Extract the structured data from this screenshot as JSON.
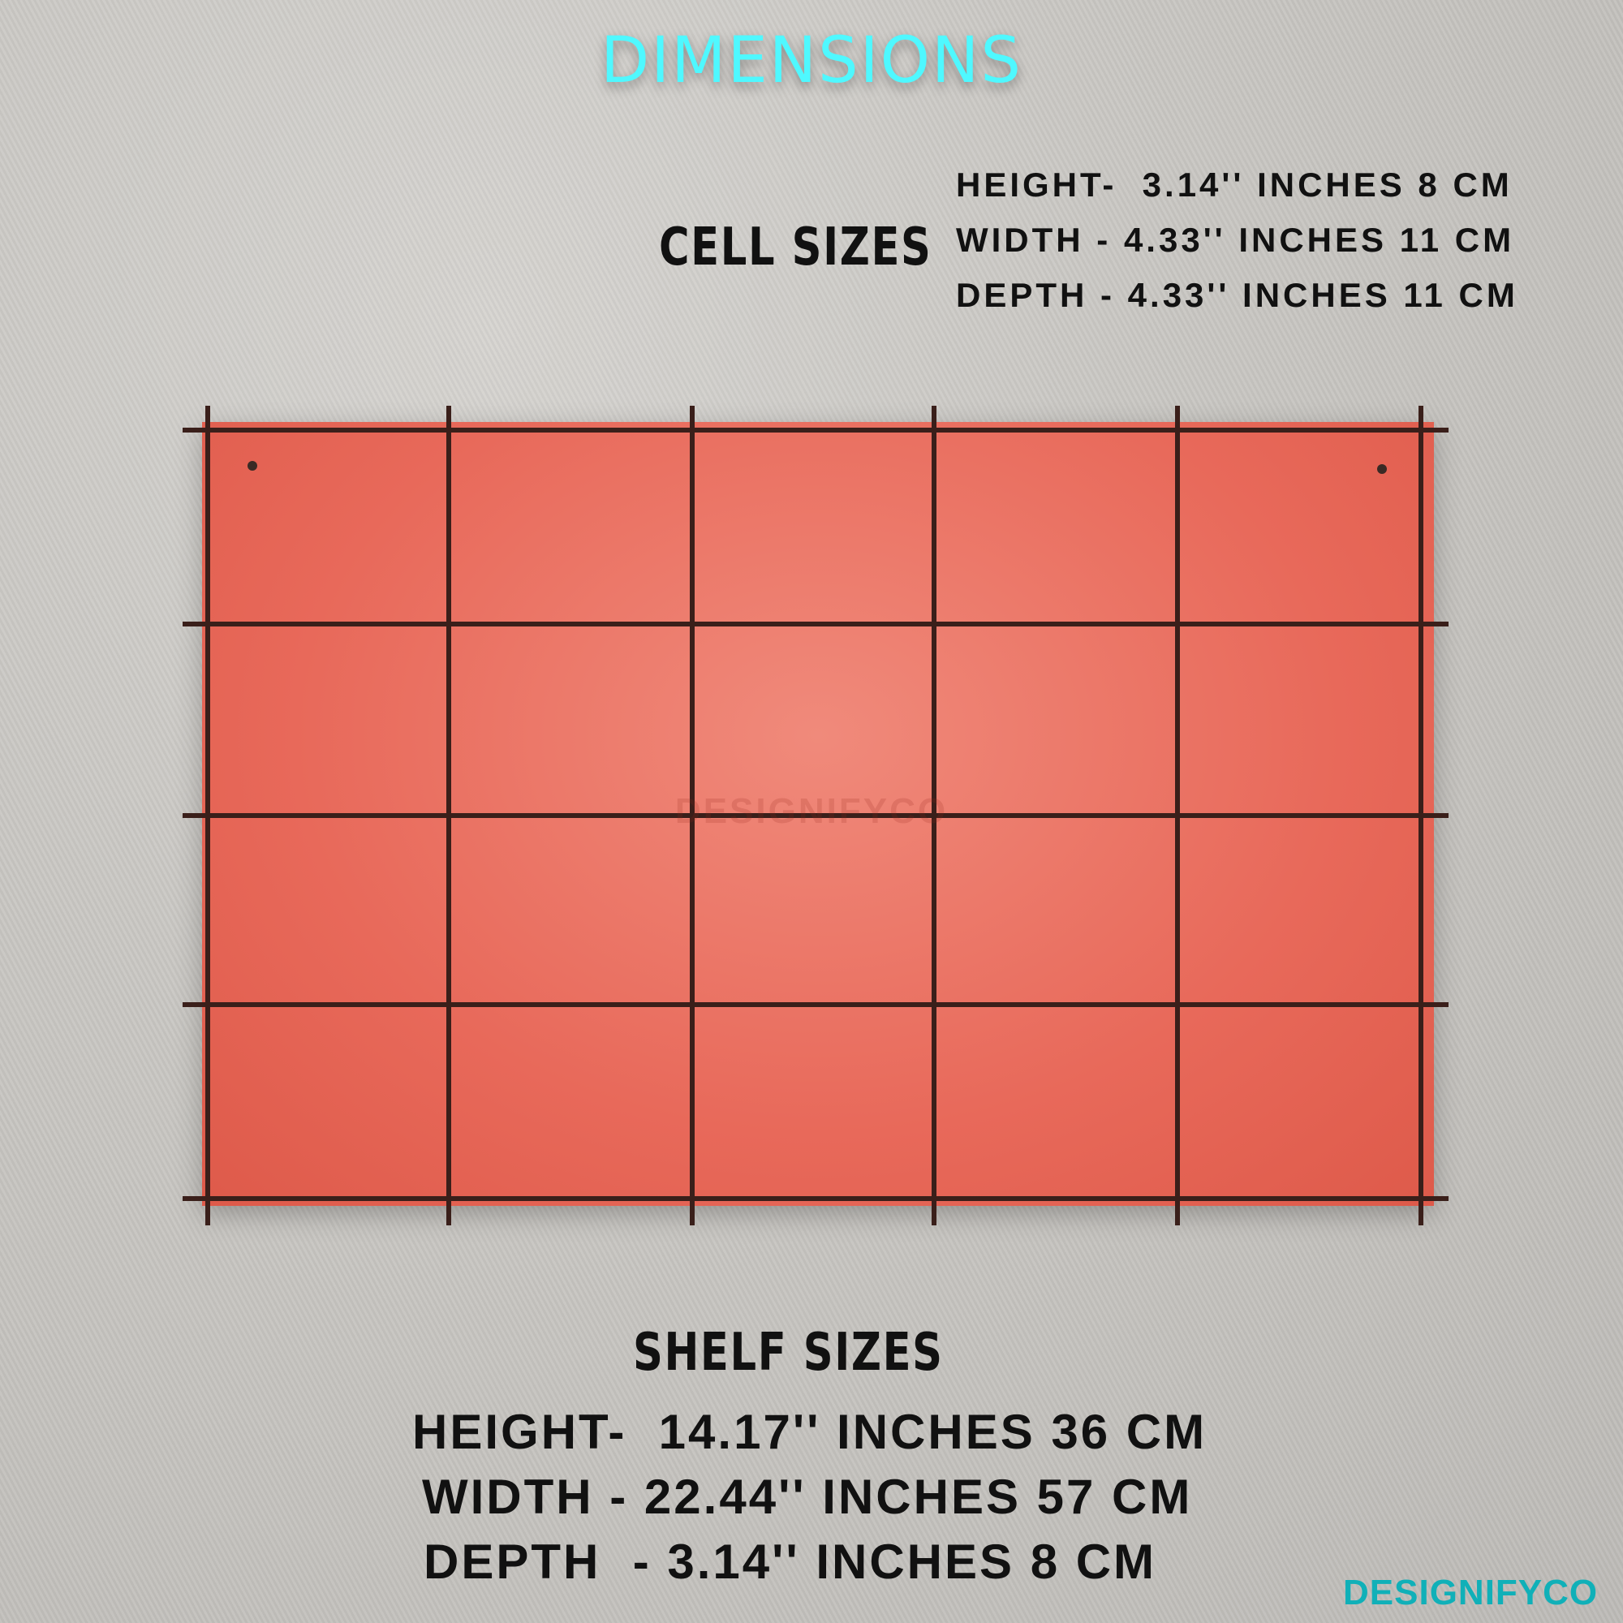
{
  "title": "DIMENSIONS",
  "cell_sizes": {
    "label": "CELL SIZES",
    "lines": [
      "HEIGHT-  3.14'' INCHES 8 CM",
      "WIDTH - 4.33'' INCHES 11 CM",
      "DEPTH - 4.33'' INCHES 11 CM"
    ]
  },
  "shelf_sizes": {
    "label": "SHELF SIZES",
    "lines": [
      "HEIGHT-  14.17'' INCHES 36 CM",
      "WIDTH - 22.44'' INCHES 57 CM",
      "DEPTH  - 3.14'' INCHES 8 CM"
    ]
  },
  "shelf": {
    "rows": 4,
    "columns": 5,
    "color": "#e8695a"
  },
  "watermark": "DESIGNIFYCO",
  "brand": "DESIGNIFYCO",
  "colors": {
    "title": "#4ff8ff",
    "brand": "#10b0b8"
  }
}
